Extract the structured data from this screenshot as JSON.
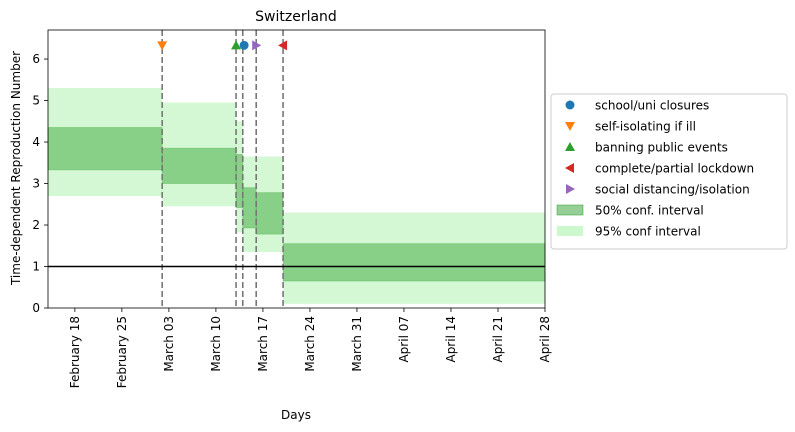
{
  "chart_data": {
    "type": "area",
    "title": "Switzerland",
    "xlabel": "Days",
    "ylabel": "Time-dependent Reproduction Number",
    "x_range": [
      "2020-02-14",
      "2020-04-28"
    ],
    "ylim": [
      0,
      6.7
    ],
    "x_ticks": [
      {
        "date": "2020-02-18",
        "label": "February 18"
      },
      {
        "date": "2020-02-25",
        "label": "February 25"
      },
      {
        "date": "2020-03-03",
        "label": "March 03"
      },
      {
        "date": "2020-03-10",
        "label": "March 10"
      },
      {
        "date": "2020-03-17",
        "label": "March 17"
      },
      {
        "date": "2020-03-24",
        "label": "March 24"
      },
      {
        "date": "2020-03-31",
        "label": "March 31"
      },
      {
        "date": "2020-04-07",
        "label": "April 07"
      },
      {
        "date": "2020-04-14",
        "label": "April 14"
      },
      {
        "date": "2020-04-21",
        "label": "April 21"
      },
      {
        "date": "2020-04-28",
        "label": "April 28"
      }
    ],
    "y_ticks": [
      0,
      1,
      2,
      3,
      4,
      5,
      6
    ],
    "reference_line": 1,
    "grid": false,
    "legend_position": "right",
    "intervals": [
      {
        "start": "2020-02-14",
        "end": "2020-03-02",
        "ci50": [
          3.33,
          4.35
        ],
        "ci95": [
          2.7,
          5.3
        ]
      },
      {
        "start": "2020-03-02",
        "end": "2020-03-13",
        "ci50": [
          3.0,
          3.85
        ],
        "ci95": [
          2.45,
          4.95
        ]
      },
      {
        "start": "2020-03-13",
        "end": "2020-03-14",
        "ci50": [
          2.42,
          3.7
        ],
        "ci95": [
          1.82,
          4.5
        ]
      },
      {
        "start": "2020-03-14",
        "end": "2020-03-16",
        "ci50": [
          1.93,
          2.9
        ],
        "ci95": [
          1.35,
          3.65
        ]
      },
      {
        "start": "2020-03-16",
        "end": "2020-03-20",
        "ci50": [
          1.78,
          2.78
        ],
        "ci95": [
          1.35,
          3.65
        ]
      },
      {
        "start": "2020-03-20",
        "end": "2020-04-28",
        "ci50": [
          0.65,
          1.55
        ],
        "ci95": [
          0.1,
          2.3
        ]
      }
    ],
    "interventions": [
      {
        "name": "school/uni closures",
        "date": "2020-03-14",
        "marker_date": "2020-03-14.2",
        "marker": "circle",
        "color": "#1f77b4"
      },
      {
        "name": "self-isolating if ill",
        "date": "2020-03-02",
        "marker_date": "2020-03-02",
        "marker": "triangle-down",
        "color": "#ff7f0e"
      },
      {
        "name": "banning public events",
        "date": "2020-03-13",
        "marker_date": "2020-03-13",
        "marker": "triangle-up",
        "color": "#2ca02c"
      },
      {
        "name": "complete/partial lockdown",
        "date": "2020-03-20",
        "marker_date": "2020-03-20",
        "marker": "triangle-left",
        "color": "#d62728"
      },
      {
        "name": "social distancing/isolation",
        "date": "2020-03-16",
        "marker_date": "2020-03-16",
        "marker": "triangle-right",
        "color": "#9467bd"
      }
    ],
    "legend": [
      {
        "label": "school/uni closures",
        "kind": "circle",
        "color": "#1f77b4"
      },
      {
        "label": "self-isolating if ill",
        "kind": "triangle-down",
        "color": "#ff7f0e"
      },
      {
        "label": "banning public events",
        "kind": "triangle-up",
        "color": "#2ca02c"
      },
      {
        "label": "complete/partial lockdown",
        "kind": "triangle-left",
        "color": "#d62728"
      },
      {
        "label": "social distancing/isolation",
        "kind": "triangle-right",
        "color": "#9467bd"
      },
      {
        "label": "50% conf. interval",
        "kind": "patch50",
        "color": "#5cb85c"
      },
      {
        "label": "95% conf interval",
        "kind": "patch95",
        "color": "#90ee90"
      }
    ]
  }
}
